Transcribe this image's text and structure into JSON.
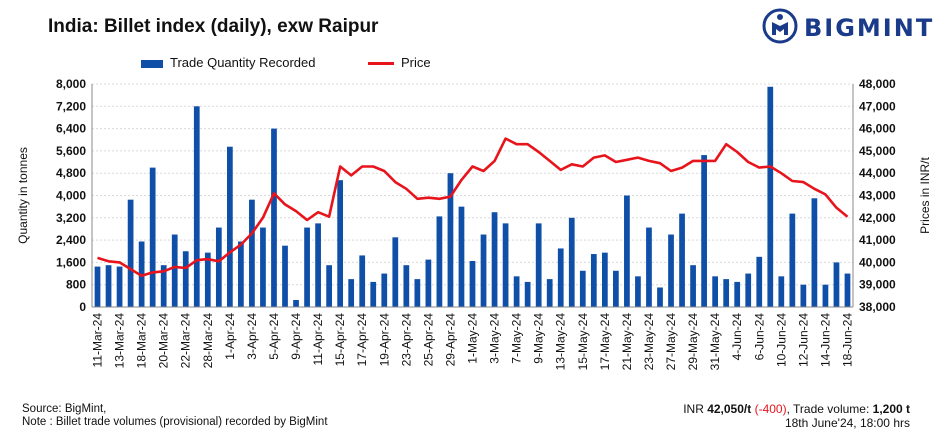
{
  "header": {
    "title": "India: Billet index (daily), exw Raipur",
    "logo_text": "BIGMINT"
  },
  "footer": {
    "source": "Source: BigMint,",
    "note": "Note : Billet trade volumes (provisional) recorded by BigMint",
    "price_prefix": "INR ",
    "price_value": "42,050/t",
    "price_change": " (-400)",
    "volume_label": ", Trade volume: ",
    "volume_value": "1,200 t",
    "timestamp": "18th June'24, 18:00 hrs"
  },
  "colors": {
    "bar": "#0f4fa8",
    "line": "#e8141c"
  },
  "chart_data": {
    "type": "bar",
    "title": "India: Billet index (daily), exw Raipur",
    "ylabel": "Quantity in tonnes",
    "y2label": "Prices in INR/t",
    "ylim": [
      0,
      8000
    ],
    "y2lim": [
      38000,
      48000
    ],
    "yticks": [
      "0",
      "800",
      "1,600",
      "2,400",
      "3,200",
      "4,000",
      "4,800",
      "5,600",
      "6,400",
      "7,200",
      "8,000"
    ],
    "y2ticks": [
      "38,000",
      "39,000",
      "40,000",
      "41,000",
      "42,000",
      "43,000",
      "44,000",
      "45,000",
      "46,000",
      "47,000",
      "48,000"
    ],
    "x_tick_labels": [
      "11-Mar-24",
      "13-Mar-24",
      "18-Mar-24",
      "20-Mar-24",
      "22-Mar-24",
      "28-Mar-24",
      "1-Apr-24",
      "3-Apr-24",
      "5-Apr-24",
      "9-Apr-24",
      "11-Apr-24",
      "15-Apr-24",
      "17-Apr-24",
      "19-Apr-24",
      "23-Apr-24",
      "25-Apr-24",
      "29-Apr-24",
      "1-May-24",
      "3-May-24",
      "7-May-24",
      "9-May-24",
      "13-May-24",
      "15-May-24",
      "17-May-24",
      "21-May-24",
      "23-May-24",
      "27-May-24",
      "29-May-24",
      "31-May-24",
      "4-Jun-24",
      "6-Jun-24",
      "10-Jun-24",
      "12-Jun-24",
      "14-Jun-24",
      "18-Jun-24"
    ],
    "legend": {
      "position": "top",
      "entries": [
        "Trade Quantity Recorded",
        "Price"
      ]
    },
    "series": [
      {
        "name": "Trade Quantity Recorded",
        "type": "bar",
        "axis": "left",
        "values": [
          1450,
          1500,
          1450,
          3850,
          2350,
          5000,
          1500,
          2600,
          2000,
          7200,
          1950,
          2850,
          5750,
          2350,
          3850,
          2850,
          6400,
          2200,
          250,
          2850,
          3000,
          1500,
          4550,
          1000,
          1850,
          900,
          1200,
          2500,
          1500,
          1000,
          1700,
          3250,
          4800,
          3600,
          1650,
          2600,
          3400,
          3000,
          1100,
          900,
          3000,
          1000,
          2100,
          3200,
          1300,
          1900,
          1950,
          1300,
          4000,
          1100,
          2850,
          700,
          2600,
          3350,
          1500,
          5450,
          1100,
          1000,
          900,
          1200,
          1800,
          7900,
          1100,
          3350,
          800,
          3900,
          800,
          1600,
          1200
        ]
      },
      {
        "name": "Price",
        "type": "line",
        "axis": "right",
        "values": [
          40200,
          40050,
          40000,
          39700,
          39400,
          39550,
          39600,
          39800,
          39750,
          40100,
          40150,
          40050,
          40450,
          40800,
          41300,
          42000,
          43100,
          42600,
          42300,
          41900,
          42250,
          42050,
          44300,
          43900,
          44300,
          44300,
          44100,
          43600,
          43300,
          42850,
          42900,
          42850,
          42950,
          43700,
          44300,
          44100,
          44550,
          45550,
          45300,
          45300,
          44950,
          44550,
          44150,
          44400,
          44300,
          44700,
          44800,
          44500,
          44600,
          44700,
          44550,
          44450,
          44100,
          44250,
          44550,
          44550,
          44550,
          45300,
          44950,
          44500,
          44250,
          44300,
          44000,
          43650,
          43600,
          43300,
          43050,
          42450,
          42050
        ]
      }
    ]
  }
}
